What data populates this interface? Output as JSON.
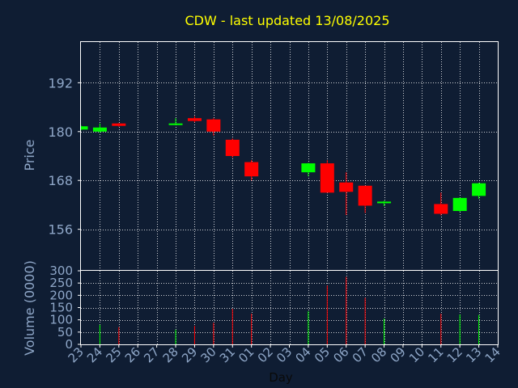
{
  "title": "CDW - last updated 13/08/2025",
  "colors": {
    "background": "#0f1d33",
    "title": "#ffff00",
    "axis_text": "#8fa7c8",
    "frame": "#ffffff",
    "grid": "#ffffff",
    "up": "#00ff00",
    "down": "#ff0000"
  },
  "chart_data": [
    {
      "type": "candlestick",
      "ylabel": "Price",
      "ylim": [
        146,
        202
      ],
      "yticks": [
        156,
        168,
        180,
        192
      ],
      "grid": true,
      "x_days": [
        "23",
        "24",
        "25",
        "26",
        "27",
        "28",
        "29",
        "30",
        "31",
        "01",
        "02",
        "03",
        "04",
        "05",
        "06",
        "07",
        "08",
        "09",
        "10",
        "11",
        "12",
        "13",
        "14"
      ],
      "candles": [
        {
          "day": "23",
          "open": 180.5,
          "close": 181.3,
          "high": 181.5,
          "low": 180.3
        },
        {
          "day": "24",
          "open": 180.0,
          "close": 181.0,
          "high": 182.0,
          "low": 179.7
        },
        {
          "day": "25",
          "open": 182.0,
          "close": 181.4,
          "high": 182.1,
          "low": 181.2
        },
        {
          "day": "28",
          "open": 181.8,
          "close": 182.0,
          "high": 183.3,
          "low": 181.6
        },
        {
          "day": "29",
          "open": 183.3,
          "close": 182.6,
          "high": 183.8,
          "low": 182.3
        },
        {
          "day": "30",
          "open": 183.0,
          "close": 180.0,
          "high": 183.3,
          "low": 179.0
        },
        {
          "day": "31",
          "open": 178.0,
          "close": 174.0,
          "high": 178.3,
          "low": 173.6
        },
        {
          "day": "01",
          "open": 172.5,
          "close": 169.0,
          "high": 173.0,
          "low": 168.0
        },
        {
          "day": "04",
          "open": 170.0,
          "close": 172.2,
          "high": 172.3,
          "low": 169.0
        },
        {
          "day": "05",
          "open": 172.2,
          "close": 165.0,
          "high": 173.0,
          "low": 165.0
        },
        {
          "day": "06",
          "open": 167.5,
          "close": 165.2,
          "high": 170.0,
          "low": 159.5
        },
        {
          "day": "07",
          "open": 166.7,
          "close": 161.8,
          "high": 166.7,
          "low": 160.0
        },
        {
          "day": "08",
          "open": 162.5,
          "close": 162.8,
          "high": 163.0,
          "low": 161.7
        },
        {
          "day": "11",
          "open": 162.2,
          "close": 159.8,
          "high": 165.0,
          "low": 159.4
        },
        {
          "day": "12",
          "open": 160.5,
          "close": 163.7,
          "high": 163.8,
          "low": 160.3
        },
        {
          "day": "13",
          "open": 164.2,
          "close": 167.3,
          "high": 167.4,
          "low": 163.5
        }
      ]
    },
    {
      "type": "bar",
      "ylabel": "Volume (0000)",
      "xlabel": "Day",
      "ylim": [
        0,
        300
      ],
      "yticks": [
        0,
        50,
        100,
        150,
        200,
        250,
        300
      ],
      "grid": true,
      "categories": [
        "23",
        "24",
        "25",
        "26",
        "27",
        "28",
        "29",
        "30",
        "31",
        "01",
        "02",
        "03",
        "04",
        "05",
        "06",
        "07",
        "08",
        "09",
        "10",
        "11",
        "12",
        "13",
        "14"
      ],
      "bars": [
        {
          "day": "24",
          "value": 80,
          "direction": "up"
        },
        {
          "day": "25",
          "value": 70,
          "direction": "down"
        },
        {
          "day": "28",
          "value": 60,
          "direction": "up"
        },
        {
          "day": "29",
          "value": 75,
          "direction": "down"
        },
        {
          "day": "30",
          "value": 88,
          "direction": "down"
        },
        {
          "day": "31",
          "value": 145,
          "direction": "down"
        },
        {
          "day": "01",
          "value": 125,
          "direction": "down"
        },
        {
          "day": "04",
          "value": 135,
          "direction": "up"
        },
        {
          "day": "05",
          "value": 240,
          "direction": "down"
        },
        {
          "day": "06",
          "value": 275,
          "direction": "down"
        },
        {
          "day": "07",
          "value": 190,
          "direction": "down"
        },
        {
          "day": "08",
          "value": 105,
          "direction": "up"
        },
        {
          "day": "11",
          "value": 125,
          "direction": "down"
        },
        {
          "day": "12",
          "value": 122,
          "direction": "up"
        },
        {
          "day": "13",
          "value": 120,
          "direction": "up"
        }
      ]
    }
  ]
}
